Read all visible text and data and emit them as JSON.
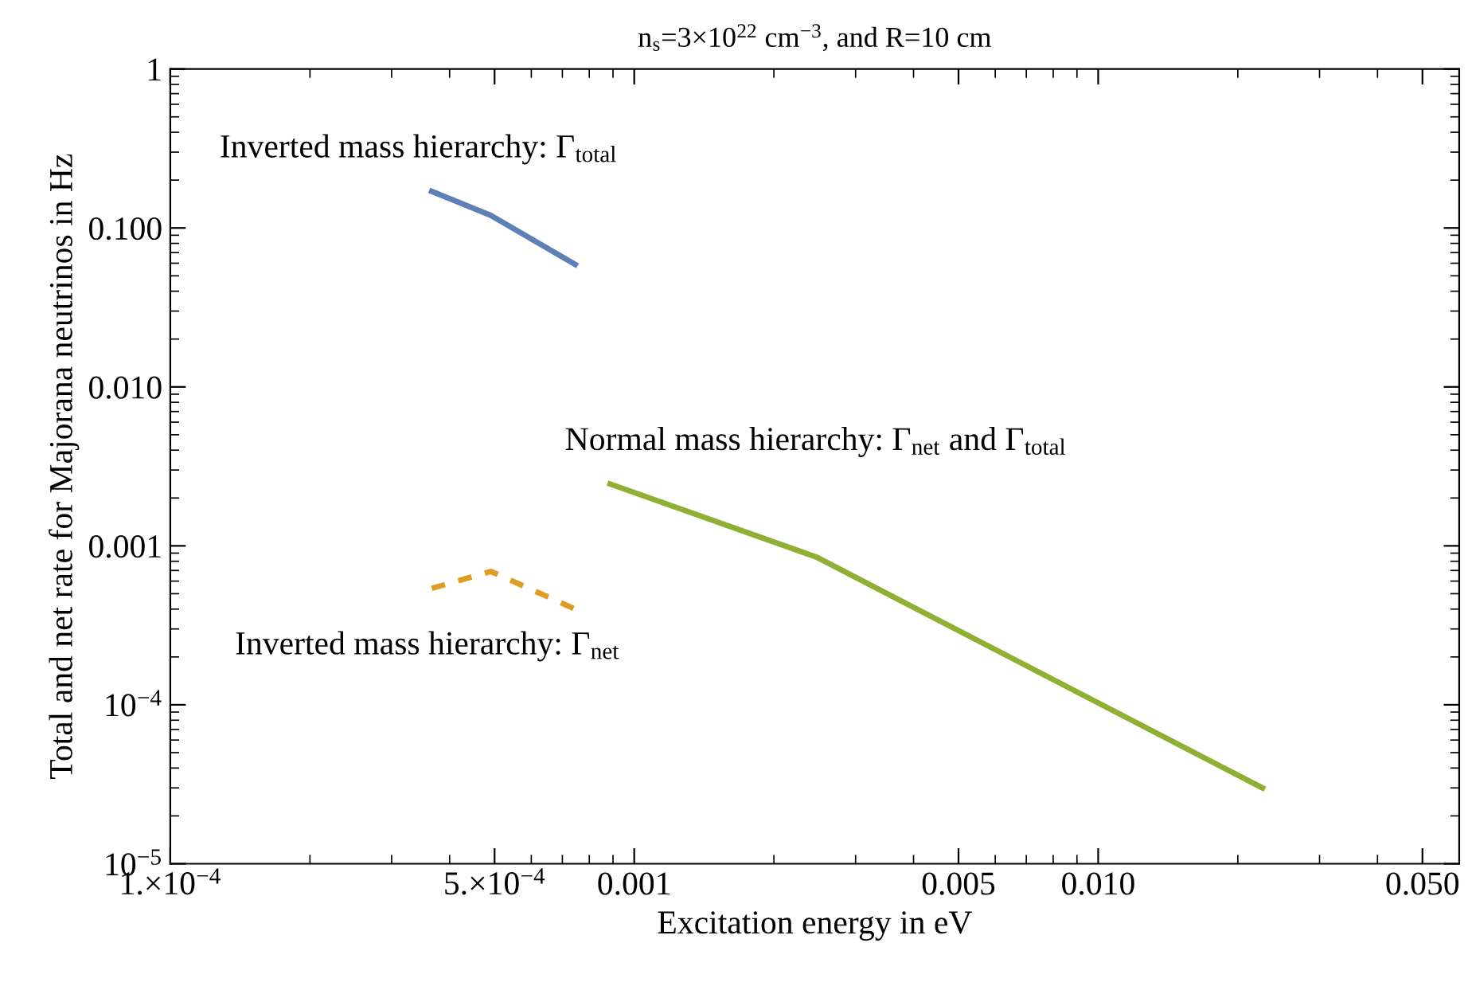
{
  "chart_data": {
    "type": "line",
    "title": "n$_{s}$=3×10$^{22}$ cm$^{−3}$, and R=10 cm",
    "xlabel": "Excitation energy in eV",
    "ylabel": "Total and net rate for Majorana neutrinos in Hz",
    "log": "xy",
    "grid": false,
    "legend": false,
    "marker": "none",
    "xlim": [
      0.0001,
      0.06
    ],
    "ylim": [
      1e-05,
      1
    ],
    "xticks": [
      {
        "value": 0.0001,
        "label": "1.×10$^{−4}$"
      },
      {
        "value": 0.0005,
        "label": "5.×10$^{−4}$"
      },
      {
        "value": 0.001,
        "label": "0.001"
      },
      {
        "value": 0.005,
        "label": "0.005"
      },
      {
        "value": 0.01,
        "label": "0.010"
      },
      {
        "value": 0.05,
        "label": "0.050"
      }
    ],
    "yticks": [
      {
        "value": 1e-05,
        "label": "10$^{−5}$"
      },
      {
        "value": 0.0001,
        "label": "10$^{−4}$"
      },
      {
        "value": 0.001,
        "label": "0.001"
      },
      {
        "value": 0.01,
        "label": "0.010"
      },
      {
        "value": 0.1,
        "label": "0.100"
      },
      {
        "value": 1,
        "label": "1"
      }
    ],
    "series": [
      {
        "color": "#5e81b5",
        "line_style": "solid",
        "x": [
          0.000366,
          0.000491,
          0.000746
        ],
        "values": [
          0.17,
          0.12,
          0.059
        ]
      },
      {
        "color": "#8fb032",
        "line_style": "solid",
        "x": [
          0.000887,
          0.00247,
          0.0226
        ],
        "values": [
          0.00245,
          0.00085,
          3e-05
        ]
      },
      {
        "color": "#e19c24",
        "line_style": "dashed",
        "x": [
          0.000366,
          0.000491,
          0.000746
        ],
        "values": [
          0.00054,
          0.00069,
          0.0004
        ]
      }
    ],
    "annotations": [
      "Inverted mass hierarchy: Γ$_{total}$",
      "Normal mass hierarchy: Γ$_{net}$ and Γ$_{total}$",
      "Inverted mass hierarchy: Γ$_{net}$"
    ]
  }
}
